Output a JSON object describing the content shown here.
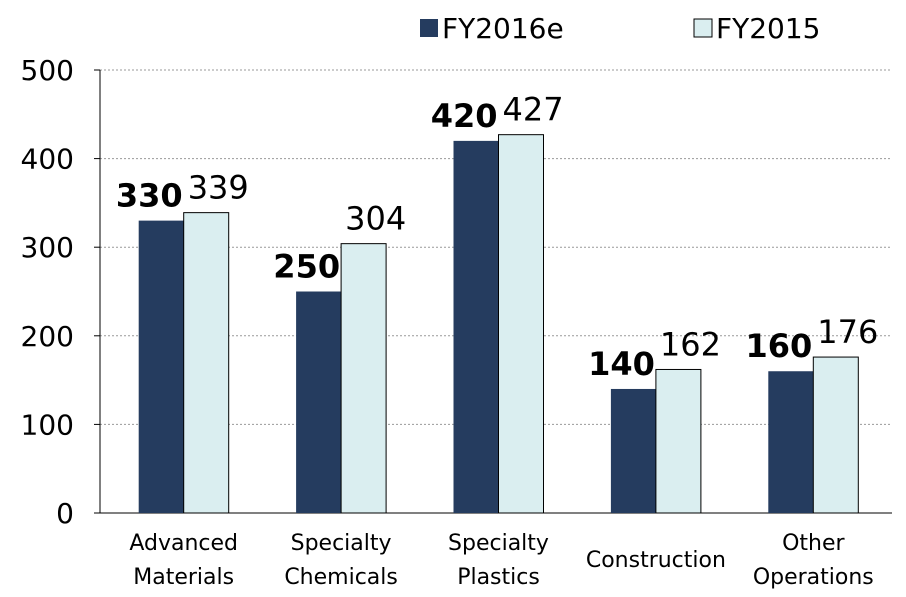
{
  "chart_data": {
    "type": "bar",
    "categories": [
      "Advanced Materials",
      "Specialty Chemicals",
      "Specialty Plastics",
      "Construction",
      "Other Operations"
    ],
    "series": [
      {
        "name": "FY2016e",
        "color": "#253c5f",
        "values": [
          330,
          250,
          420,
          140,
          160
        ]
      },
      {
        "name": "FY2015",
        "color": "#daeef0",
        "values": [
          339,
          304,
          427,
          162,
          176
        ]
      }
    ],
    "ylim": [
      0,
      500
    ],
    "yticks": [
      0,
      100,
      200,
      300,
      400,
      500
    ],
    "grid": true,
    "legend": "top"
  }
}
